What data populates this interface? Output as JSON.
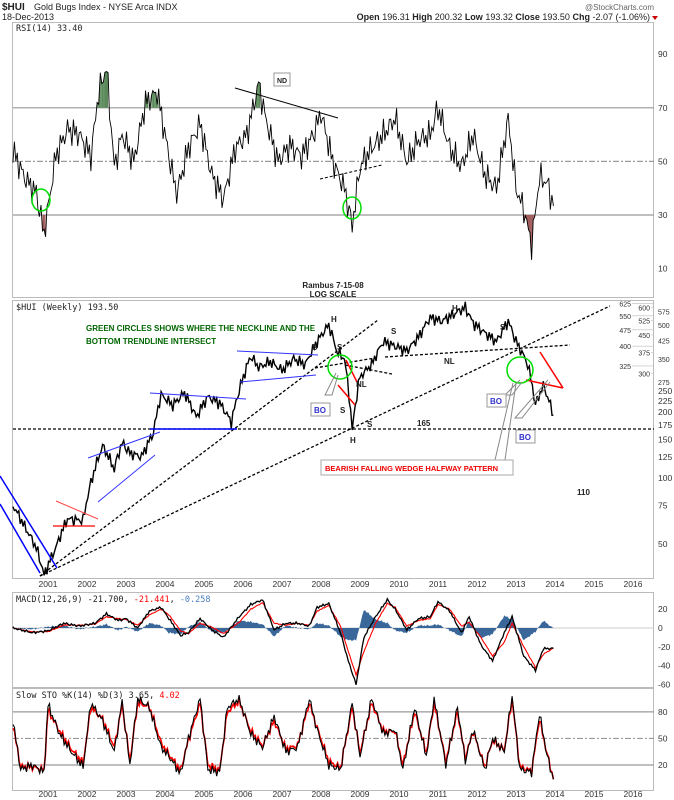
{
  "header": {
    "symbol": "$HUI",
    "name": "Gold Bugs Index - NYSE Arca INDX",
    "date": "18-Dec-2013",
    "brand": "@StockCharts.com",
    "open_label": "Open",
    "open": "196.31",
    "high_label": "High",
    "high": "200.32",
    "low_label": "Low",
    "low": "193.32",
    "close_label": "Close",
    "close": "193.50",
    "chg_label": "Chg",
    "chg": "-2.07 (-1.06%)",
    "down_color": "#cc0000"
  },
  "colors": {
    "price": "#000000",
    "signal": "#ff0000",
    "hist": "#2e5f95",
    "trend_blue": "#0000ff",
    "trend_red": "#ff0000",
    "circle": "#00dd00",
    "annot_green": "#006600"
  },
  "chart_data": [
    {
      "type": "line",
      "title": "RSI(14) 33.40",
      "ylim": [
        0,
        100
      ],
      "yticks": [
        10,
        30,
        50,
        70,
        90
      ],
      "x": [
        2000.1,
        2000.4,
        2000.7,
        2000.9,
        2001.2,
        2001.5,
        2001.8,
        2002.1,
        2002.3,
        2002.5,
        2002.7,
        2002.9,
        2003.2,
        2003.5,
        2003.8,
        2004.1,
        2004.3,
        2004.6,
        2004.9,
        2005.2,
        2005.5,
        2005.8,
        2006.1,
        2006.4,
        2006.6,
        2006.9,
        2007.2,
        2007.5,
        2007.8,
        2008.0,
        2008.3,
        2008.6,
        2008.8,
        2009.0,
        2009.3,
        2009.6,
        2009.9,
        2010.2,
        2010.5,
        2010.8,
        2011.0,
        2011.3,
        2011.6,
        2011.9,
        2012.2,
        2012.5,
        2012.8,
        2013.0,
        2013.2,
        2013.4,
        2013.6,
        2013.8,
        2013.96
      ],
      "values": [
        54,
        44,
        38,
        23,
        52,
        62,
        60,
        52,
        76,
        85,
        48,
        60,
        50,
        72,
        76,
        52,
        38,
        55,
        64,
        45,
        36,
        55,
        60,
        79,
        65,
        50,
        56,
        52,
        60,
        68,
        50,
        40,
        26,
        48,
        55,
        60,
        66,
        50,
        58,
        60,
        70,
        55,
        48,
        60,
        45,
        40,
        66,
        40,
        32,
        19,
        44,
        42,
        33.4
      ]
    },
    {
      "type": "line",
      "title": "$HUI (Weekly) 193.50",
      "scale": "log",
      "ylim": [
        35,
        650
      ],
      "yticks": [
        50,
        75,
        100,
        125,
        150,
        175,
        200,
        225,
        250,
        275,
        300,
        325,
        350,
        375,
        400,
        425,
        450,
        475,
        500,
        525,
        550,
        575,
        600,
        625
      ],
      "x": [
        2000.1,
        2000.4,
        2000.7,
        2000.9,
        2001.2,
        2001.5,
        2001.9,
        2002.1,
        2002.4,
        2002.7,
        2002.9,
        2003.1,
        2003.4,
        2003.7,
        2003.9,
        2004.2,
        2004.5,
        2004.8,
        2005.1,
        2005.4,
        2005.7,
        2005.9,
        2006.2,
        2006.4,
        2006.7,
        2007.0,
        2007.3,
        2007.6,
        2007.9,
        2008.2,
        2008.4,
        2008.6,
        2008.8,
        2009.0,
        2009.3,
        2009.6,
        2009.9,
        2010.2,
        2010.5,
        2010.8,
        2011.1,
        2011.4,
        2011.7,
        2011.9,
        2012.2,
        2012.5,
        2012.8,
        2013.0,
        2013.3,
        2013.5,
        2013.7,
        2013.96
      ],
      "values": [
        75,
        60,
        48,
        36,
        48,
        65,
        64,
        95,
        140,
        110,
        145,
        130,
        125,
        160,
        240,
        215,
        245,
        190,
        235,
        220,
        180,
        250,
        360,
        320,
        340,
        310,
        350,
        330,
        420,
        500,
        380,
        350,
        165,
        290,
        330,
        420,
        400,
        380,
        440,
        540,
        520,
        560,
        600,
        510,
        460,
        420,
        520,
        420,
        330,
        215,
        265,
        193.5
      ],
      "xticks": [
        2001,
        2002,
        2003,
        2004,
        2005,
        2006,
        2007,
        2008,
        2009,
        2010,
        2011,
        2012,
        2013,
        2014,
        2015,
        2016
      ],
      "annotations": {
        "green_note_line1": "GREEN CIRCLES SHOWS WHERE THE NECKLINE AND THE",
        "green_note_line2": "BOTTOM TRENDLINE INTERSECT",
        "wedge_note": "BEARISH FALLING WEDGE HALFWAY PATTERN",
        "level_165": "165",
        "target_110": "110",
        "h": "H",
        "s": "S",
        "nl": "NL",
        "bo": "BO",
        "nd": "ND",
        "author": "Rambus  7-15-08",
        "scale": "LOG SCALE"
      }
    },
    {
      "type": "line",
      "title": "MACD(12,26,9)",
      "values_label": "-21.700",
      "signal_label": "-21.441",
      "hist_label": "-0.258",
      "ylim": [
        -65,
        35
      ],
      "yticks": [
        20,
        0,
        -20,
        -40,
        -60
      ],
      "x": [
        2000.1,
        2000.6,
        2001.0,
        2001.4,
        2001.8,
        2002.2,
        2002.5,
        2002.8,
        2003.0,
        2003.3,
        2003.6,
        2003.9,
        2004.1,
        2004.4,
        2004.6,
        2004.9,
        2005.2,
        2005.5,
        2005.9,
        2006.2,
        2006.5,
        2006.8,
        2007.1,
        2007.4,
        2007.7,
        2007.9,
        2008.2,
        2008.5,
        2008.7,
        2008.9,
        2009.1,
        2009.4,
        2009.7,
        2009.9,
        2010.2,
        2010.5,
        2010.8,
        2011.0,
        2011.3,
        2011.6,
        2011.8,
        2012.1,
        2012.4,
        2012.7,
        2012.9,
        2013.2,
        2013.5,
        2013.7,
        2013.96
      ],
      "macd": [
        0,
        -5,
        -3,
        5,
        2,
        5,
        15,
        8,
        10,
        0,
        18,
        22,
        10,
        -8,
        -5,
        10,
        -2,
        -10,
        12,
        25,
        30,
        -2,
        5,
        5,
        2,
        22,
        26,
        -5,
        -35,
        -60,
        -10,
        12,
        30,
        20,
        -2,
        10,
        12,
        28,
        18,
        -5,
        12,
        -18,
        -35,
        -5,
        12,
        -30,
        -45,
        -22,
        -21.7
      ],
      "signal": [
        0,
        -4,
        -4,
        3,
        3,
        4,
        12,
        10,
        9,
        3,
        14,
        20,
        14,
        -3,
        -6,
        5,
        1,
        -6,
        6,
        20,
        27,
        5,
        3,
        5,
        3,
        18,
        24,
        2,
        -25,
        -50,
        -25,
        5,
        26,
        22,
        2,
        8,
        10,
        25,
        20,
        2,
        6,
        -10,
        -30,
        -15,
        5,
        -20,
        -42,
        -28,
        -21.4
      ]
    },
    {
      "type": "line",
      "title": "Slow STO %K(14) %D(3)",
      "k_label": "3.65",
      "d_label": "4.02",
      "ylim": [
        0,
        100
      ],
      "yticks": [
        80,
        50,
        20
      ],
      "x": [
        2000.1,
        2000.3,
        2000.6,
        2000.9,
        2001.0,
        2001.3,
        2001.6,
        2001.9,
        2002.1,
        2002.4,
        2002.7,
        2002.9,
        2003.1,
        2003.3,
        2003.6,
        2003.9,
        2004.1,
        2004.4,
        2004.6,
        2004.9,
        2005.1,
        2005.4,
        2005.6,
        2005.9,
        2006.2,
        2006.5,
        2006.8,
        2007.1,
        2007.4,
        2007.7,
        2007.9,
        2008.2,
        2008.5,
        2008.8,
        2009.0,
        2009.3,
        2009.6,
        2009.9,
        2010.1,
        2010.4,
        2010.7,
        2010.9,
        2011.2,
        2011.5,
        2011.7,
        2011.9,
        2012.2,
        2012.4,
        2012.7,
        2012.9,
        2013.1,
        2013.4,
        2013.6,
        2013.8,
        2013.96
      ],
      "k": [
        70,
        15,
        20,
        12,
        88,
        55,
        35,
        18,
        90,
        70,
        35,
        92,
        20,
        95,
        85,
        40,
        30,
        10,
        50,
        95,
        15,
        12,
        85,
        95,
        55,
        40,
        75,
        35,
        40,
        95,
        60,
        20,
        15,
        90,
        30,
        95,
        55,
        60,
        15,
        85,
        30,
        95,
        20,
        85,
        25,
        60,
        15,
        50,
        35,
        98,
        15,
        12,
        78,
        30,
        3.65
      ],
      "d": [
        65,
        18,
        18,
        14,
        82,
        58,
        38,
        22,
        85,
        72,
        40,
        88,
        25,
        90,
        86,
        45,
        32,
        14,
        48,
        90,
        20,
        14,
        80,
        92,
        58,
        42,
        70,
        38,
        42,
        90,
        62,
        24,
        17,
        85,
        34,
        90,
        58,
        58,
        20,
        80,
        34,
        90,
        24,
        80,
        28,
        58,
        18,
        48,
        37,
        94,
        18,
        13,
        72,
        32,
        4.02
      ]
    }
  ]
}
